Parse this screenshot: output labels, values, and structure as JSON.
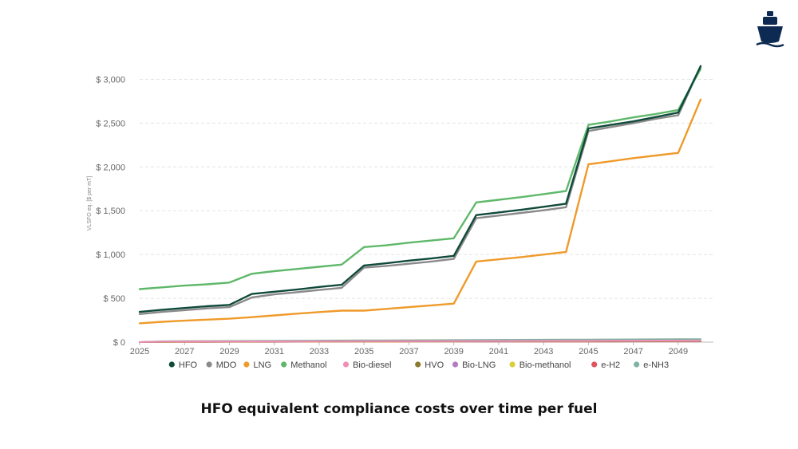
{
  "caption": "HFO equivalent compliance costs over time per fuel",
  "logo_icon": "ship-icon",
  "colors": {
    "logo": "#0d2a52",
    "grid": "#e3e3e3",
    "axis": "#bbbbbb"
  },
  "chart_data": {
    "type": "line",
    "title": "HFO equivalent compliance costs over time per fuel",
    "xlabel": "",
    "ylabel": "VLSFO eq. [$ per mT]",
    "xlim": [
      2025,
      2050
    ],
    "ylim": [
      0,
      3250
    ],
    "x_ticks": [
      2025,
      2027,
      2029,
      2031,
      2033,
      2035,
      2037,
      2039,
      2041,
      2043,
      2045,
      2047,
      2049
    ],
    "x_tick_labels": [
      "2025",
      "2027",
      "2029",
      "2031",
      "2033",
      "2035",
      "2037",
      "2039",
      "2041",
      "2043",
      "2045",
      "2047",
      "2049"
    ],
    "y_ticks": [
      0,
      500,
      1000,
      1500,
      2000,
      2500,
      3000
    ],
    "y_tick_labels": [
      "$ 0",
      "$ 500",
      "$ 1,000",
      "$ 1,500",
      "$ 2,000",
      "$ 2,500",
      "$ 3,000"
    ],
    "grid": true,
    "legend_position": "bottom",
    "x": [
      2025,
      2026,
      2027,
      2028,
      2029,
      2030,
      2031,
      2032,
      2033,
      2034,
      2035,
      2036,
      2037,
      2038,
      2039,
      2040,
      2041,
      2042,
      2043,
      2044,
      2045,
      2046,
      2047,
      2048,
      2049,
      2050
    ],
    "series": [
      {
        "name": "e-NH3",
        "color": "#7fb2a4",
        "values": [
          0,
          10,
          12,
          13,
          14,
          15,
          16,
          17,
          18,
          19,
          20,
          21,
          22,
          23,
          24,
          25,
          26,
          27,
          28,
          29,
          30,
          31,
          32,
          33,
          34,
          35
        ]
      },
      {
        "name": "e-H2",
        "color": "#e0535c",
        "values": [
          0,
          2,
          3,
          3,
          4,
          4,
          4,
          5,
          5,
          5,
          5,
          5,
          6,
          6,
          6,
          6,
          6,
          7,
          7,
          7,
          7,
          7,
          8,
          8,
          8,
          8
        ]
      },
      {
        "name": "Bio-methanol",
        "color": "#d8cf3a",
        "values": [
          0,
          3,
          4,
          4,
          5,
          5,
          6,
          6,
          6,
          7,
          7,
          7,
          8,
          8,
          8,
          9,
          9,
          9,
          10,
          10,
          10,
          11,
          11,
          11,
          12,
          12
        ]
      },
      {
        "name": "Bio-LNG",
        "color": "#b57ac4",
        "values": [
          0,
          4,
          5,
          5,
          6,
          6,
          7,
          7,
          8,
          8,
          8,
          9,
          9,
          9,
          10,
          10,
          10,
          11,
          11,
          11,
          12,
          12,
          12,
          13,
          13,
          13
        ]
      },
      {
        "name": "HVO",
        "color": "#8b7a2b",
        "values": [
          0,
          5,
          6,
          7,
          7,
          8,
          8,
          9,
          9,
          10,
          10,
          10,
          11,
          11,
          12,
          12,
          12,
          13,
          13,
          14,
          14,
          14,
          15,
          15,
          16,
          16
        ]
      },
      {
        "name": "Bio-diesel",
        "color": "#ee8fb6",
        "values": [
          0,
          6,
          7,
          8,
          8,
          9,
          9,
          10,
          10,
          11,
          11,
          12,
          12,
          13,
          13,
          14,
          14,
          15,
          15,
          16,
          16,
          17,
          17,
          18,
          18,
          19
        ]
      },
      {
        "name": "LNG",
        "color": "#ef9a2a",
        "values": [
          215,
          232,
          245,
          257,
          268,
          285,
          305,
          325,
          343,
          360,
          360,
          380,
          400,
          420,
          440,
          920,
          945,
          970,
          1000,
          1030,
          2030,
          2065,
          2100,
          2130,
          2160,
          2770
        ]
      },
      {
        "name": "MDO",
        "color": "#8a8a8a",
        "values": [
          320,
          345,
          365,
          385,
          400,
          510,
          545,
          570,
          595,
          620,
          850,
          870,
          895,
          920,
          950,
          1415,
          1445,
          1475,
          1505,
          1540,
          2410,
          2455,
          2500,
          2550,
          2590,
          3150
        ]
      },
      {
        "name": "Methanol",
        "color": "#5fb86a",
        "values": [
          605,
          625,
          645,
          660,
          680,
          780,
          810,
          835,
          860,
          885,
          1085,
          1105,
          1135,
          1160,
          1185,
          1595,
          1625,
          1655,
          1690,
          1725,
          2480,
          2520,
          2565,
          2605,
          2650,
          3120
        ]
      },
      {
        "name": "HFO",
        "color": "#0f4a3a",
        "values": [
          345,
          370,
          390,
          410,
          425,
          550,
          575,
          600,
          630,
          655,
          875,
          900,
          930,
          955,
          985,
          1450,
          1480,
          1510,
          1545,
          1580,
          2440,
          2480,
          2520,
          2570,
          2620,
          3150
        ]
      }
    ],
    "legend_order": [
      "HFO",
      "MDO",
      "LNG",
      "Methanol",
      "Bio-diesel",
      "HVO",
      "Bio-LNG",
      "Bio-methanol",
      "e-H2",
      "e-NH3"
    ]
  }
}
